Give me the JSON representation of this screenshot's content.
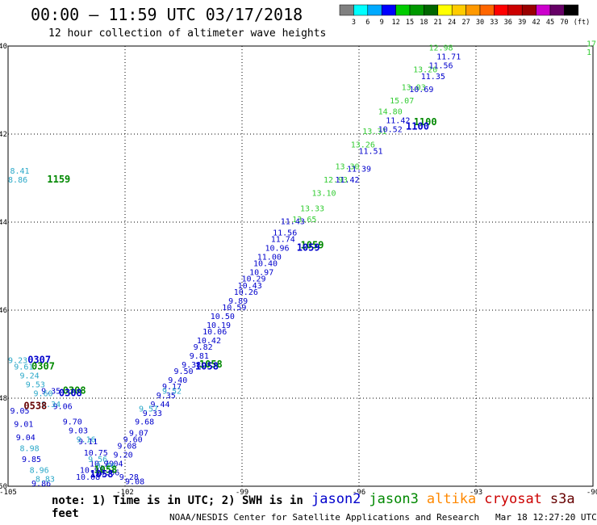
{
  "header": {
    "title": "00:00 – 11:59 UTC 03/17/2018",
    "subtitle": "12 hour collection of altimeter wave heights"
  },
  "footer": {
    "note": "note: 1) Time is in UTC; 2) SWH is in feet",
    "credit": "NOAA/NESDIS Center for Satellite Applications and Research   Mar 18 12:27:20 UTC 2018"
  },
  "satellites": [
    {
      "name": "jason2",
      "color": "#0000cc"
    },
    {
      "name": "jason3",
      "color": "#008800"
    },
    {
      "name": "altika",
      "color": "#ff8800"
    },
    {
      "name": "cryosat",
      "color": "#cc0000"
    },
    {
      "name": "s3a",
      "color": "#660000"
    }
  ],
  "chart_data": {
    "type": "scatter",
    "title": "00:00 – 11:59 UTC 03/17/2018",
    "xlabel": "",
    "ylabel": "",
    "xlim": [
      -105,
      -90
    ],
    "ylim": [
      -50,
      -40
    ],
    "grid": true,
    "x_ticks": [
      "-105",
      "-102",
      "-99",
      "-96",
      "-93",
      "-90"
    ],
    "y_ticks": [
      "-40",
      "-42",
      "-44",
      "-46",
      "-48",
      "-50"
    ],
    "colorbar": {
      "unit": "(ft)",
      "thresholds": [
        "3",
        "6",
        "9",
        "12",
        "15",
        "18",
        "21",
        "24",
        "27",
        "30",
        "33",
        "36",
        "39",
        "42",
        "45",
        "70"
      ],
      "colors": [
        "#808080",
        "#00ffff",
        "#00aaff",
        "#0000ff",
        "#00cc00",
        "#009900",
        "#006600",
        "#ffff00",
        "#ffcc00",
        "#ff9900",
        "#ff6600",
        "#ff0000",
        "#cc0000",
        "#990000",
        "#cc00cc",
        "#660066",
        "#000000"
      ]
    },
    "time_labels": [
      {
        "text": "1100",
        "x": -94.3,
        "y": -41.8,
        "color": "#008800"
      },
      {
        "text": "1100",
        "x": -94.5,
        "y": -41.9,
        "color": "#0000cc"
      },
      {
        "text": "1159",
        "x": -103.7,
        "y": -43.1,
        "color": "#008800"
      },
      {
        "text": "1059",
        "x": -97.2,
        "y": -44.6,
        "color": "#008800"
      },
      {
        "text": "1059",
        "x": -97.3,
        "y": -44.65,
        "color": "#0000cc"
      },
      {
        "text": "1058",
        "x": -99.8,
        "y": -47.3,
        "color": "#008800"
      },
      {
        "text": "1058",
        "x": -99.9,
        "y": -47.35,
        "color": "#0000cc"
      },
      {
        "text": "0307",
        "x": -104.2,
        "y": -47.2,
        "color": "#0000cc"
      },
      {
        "text": "0307",
        "x": -104.1,
        "y": -47.35,
        "color": "#008800"
      },
      {
        "text": "0308",
        "x": -103.3,
        "y": -47.9,
        "color": "#008800"
      },
      {
        "text": "0308",
        "x": -103.4,
        "y": -47.95,
        "color": "#0000cc"
      },
      {
        "text": "0538",
        "x": -104.3,
        "y": -48.25,
        "color": "#660000"
      },
      {
        "text": "1058",
        "x": -102.5,
        "y": -49.7,
        "color": "#008800"
      },
      {
        "text": "1058",
        "x": -102.6,
        "y": -49.8,
        "color": "#0000cc"
      }
    ],
    "series": [
      {
        "name": "jason3",
        "color": "#33cc33",
        "points": [
          {
            "x": -93.9,
            "y": -40.1,
            "v": "12.98"
          },
          {
            "x": -94.3,
            "y": -40.6,
            "v": "13.20"
          },
          {
            "x": -94.6,
            "y": -41.0,
            "v": "13.03"
          },
          {
            "x": -94.9,
            "y": -41.3,
            "v": "15.07"
          },
          {
            "x": -95.2,
            "y": -41.55,
            "v": "14.80"
          },
          {
            "x": -95.6,
            "y": -42.0,
            "v": "13.31"
          },
          {
            "x": -95.9,
            "y": -42.3,
            "v": "13.26"
          },
          {
            "x": -96.3,
            "y": -42.8,
            "v": "13.30"
          },
          {
            "x": -96.6,
            "y": -43.1,
            "v": "12.93"
          },
          {
            "x": -96.9,
            "y": -43.4,
            "v": "13.10"
          },
          {
            "x": -97.2,
            "y": -43.75,
            "v": "13.33"
          },
          {
            "x": -97.4,
            "y": -44.0,
            "v": "13.65"
          }
        ]
      },
      {
        "name": "jason2",
        "color": "#0000cc",
        "points": [
          {
            "x": -93.7,
            "y": -40.3,
            "v": "11.71"
          },
          {
            "x": -93.9,
            "y": -40.5,
            "v": "11.56"
          },
          {
            "x": -94.1,
            "y": -40.75,
            "v": "11.35"
          },
          {
            "x": -94.4,
            "y": -41.05,
            "v": "10.69"
          },
          {
            "x": -95.0,
            "y": -41.75,
            "v": "11.42"
          },
          {
            "x": -95.2,
            "y": -41.95,
            "v": "10.52"
          },
          {
            "x": -95.7,
            "y": -42.45,
            "v": "11.51"
          },
          {
            "x": -96.0,
            "y": -42.85,
            "v": "11.39"
          },
          {
            "x": -96.3,
            "y": -43.1,
            "v": "11.42"
          },
          {
            "x": -97.7,
            "y": -44.05,
            "v": "11.43"
          },
          {
            "x": -97.9,
            "y": -44.3,
            "v": "11.56"
          },
          {
            "x": -97.95,
            "y": -44.45,
            "v": "11.74"
          },
          {
            "x": -98.1,
            "y": -44.65,
            "v": "10.96"
          },
          {
            "x": -98.3,
            "y": -44.85,
            "v": "11.00"
          },
          {
            "x": -98.4,
            "y": -45.0,
            "v": "10.40"
          },
          {
            "x": -98.5,
            "y": -45.2,
            "v": "10.97"
          },
          {
            "x": -98.7,
            "y": -45.35,
            "v": "10.29"
          },
          {
            "x": -98.8,
            "y": -45.5,
            "v": "10.43"
          },
          {
            "x": -98.9,
            "y": -45.65,
            "v": "10.26"
          },
          {
            "x": -99.1,
            "y": -45.85,
            "v": "9.89"
          },
          {
            "x": -99.2,
            "y": -46.0,
            "v": "10.59"
          },
          {
            "x": -99.5,
            "y": -46.2,
            "v": "10.50"
          },
          {
            "x": -99.6,
            "y": -46.4,
            "v": "10.19"
          },
          {
            "x": -99.7,
            "y": -46.55,
            "v": "10.06"
          },
          {
            "x": -99.85,
            "y": -46.75,
            "v": "10.42"
          },
          {
            "x": -100.0,
            "y": -46.9,
            "v": "9.82"
          },
          {
            "x": -100.1,
            "y": -47.1,
            "v": "9.81"
          },
          {
            "x": -100.3,
            "y": -47.3,
            "v": "9.38"
          },
          {
            "x": -100.5,
            "y": -47.45,
            "v": "9.50"
          },
          {
            "x": -100.65,
            "y": -47.65,
            "v": "9.40"
          },
          {
            "x": -100.8,
            "y": -47.8,
            "v": "9.17"
          },
          {
            "x": -100.95,
            "y": -48.0,
            "v": "9.35"
          },
          {
            "x": -101.1,
            "y": -48.2,
            "v": "9.44"
          },
          {
            "x": -101.3,
            "y": -48.4,
            "v": "9.33"
          },
          {
            "x": -101.5,
            "y": -48.6,
            "v": "9.68"
          },
          {
            "x": -101.65,
            "y": -48.85,
            "v": "9.07"
          },
          {
            "x": -101.8,
            "y": -49.0,
            "v": "9.60"
          },
          {
            "x": -101.95,
            "y": -49.15,
            "v": "9.08"
          },
          {
            "x": -102.05,
            "y": -49.35,
            "v": "9.20"
          },
          {
            "x": -102.3,
            "y": -49.55,
            "v": "9.04"
          },
          {
            "x": -102.45,
            "y": -49.75,
            "v": "10.06"
          },
          {
            "x": -101.9,
            "y": -49.85,
            "v": "9.28"
          },
          {
            "x": -101.75,
            "y": -49.95,
            "v": "9.08"
          }
        ]
      },
      {
        "name": "jason2-desc",
        "color": "#0000cc",
        "points": [
          {
            "x": -103.9,
            "y": -47.9,
            "v": "9.35"
          },
          {
            "x": -103.6,
            "y": -48.25,
            "v": "9.06"
          },
          {
            "x": -103.35,
            "y": -48.6,
            "v": "9.70"
          },
          {
            "x": -103.2,
            "y": -48.8,
            "v": "9.03"
          },
          {
            "x": -102.95,
            "y": -49.05,
            "v": "9.11"
          },
          {
            "x": -102.75,
            "y": -49.3,
            "v": "10.75"
          },
          {
            "x": -102.6,
            "y": -49.55,
            "v": "10.79"
          },
          {
            "x": -102.85,
            "y": -49.7,
            "v": "10.95"
          },
          {
            "x": -102.95,
            "y": -49.85,
            "v": "10.08"
          }
        ]
      },
      {
        "name": "jason2-west",
        "color": "#0000cc",
        "points": [
          {
            "x": -104.7,
            "y": -48.35,
            "v": "9.05"
          },
          {
            "x": -104.6,
            "y": -48.65,
            "v": "9.01"
          },
          {
            "x": -104.55,
            "y": -48.95,
            "v": "9.04"
          },
          {
            "x": -104.4,
            "y": -49.45,
            "v": "9.85"
          },
          {
            "x": -104.15,
            "y": -50.0,
            "v": "9.86"
          }
        ]
      },
      {
        "name": "jason3-west",
        "color": "#2aa8c8",
        "points": [
          {
            "x": -104.7,
            "y": -42.9,
            "v": "8.41"
          },
          {
            "x": -104.75,
            "y": -43.1,
            "v": "8.86"
          },
          {
            "x": -104.75,
            "y": -47.2,
            "v": "9.23"
          },
          {
            "x": -104.6,
            "y": -47.35,
            "v": "9.61"
          },
          {
            "x": -104.45,
            "y": -47.55,
            "v": "9.24"
          },
          {
            "x": -104.3,
            "y": -47.75,
            "v": "9.53"
          },
          {
            "x": -104.1,
            "y": -47.95,
            "v": "9.60"
          },
          {
            "x": -103.9,
            "y": -48.2,
            "v": "9.34"
          },
          {
            "x": -104.45,
            "y": -49.2,
            "v": "8.98"
          },
          {
            "x": -104.2,
            "y": -49.7,
            "v": "8.96"
          },
          {
            "x": -104.05,
            "y": -49.9,
            "v": "8.83"
          },
          {
            "x": -103.0,
            "y": -49.0,
            "v": "9.16"
          },
          {
            "x": -102.7,
            "y": -49.45,
            "v": "9.56"
          },
          {
            "x": -102.5,
            "y": -49.6,
            "v": "9.40"
          },
          {
            "x": -101.4,
            "y": -48.3,
            "v": "9.57"
          },
          {
            "x": -100.8,
            "y": -47.9,
            "v": "9.52"
          }
        ]
      }
    ],
    "right_edge_labels": [
      {
        "text": "17",
        "y": -39.95,
        "color": "#33cc33"
      },
      {
        "text": "1",
        "y": -40.15,
        "color": "#33cc33"
      }
    ]
  }
}
